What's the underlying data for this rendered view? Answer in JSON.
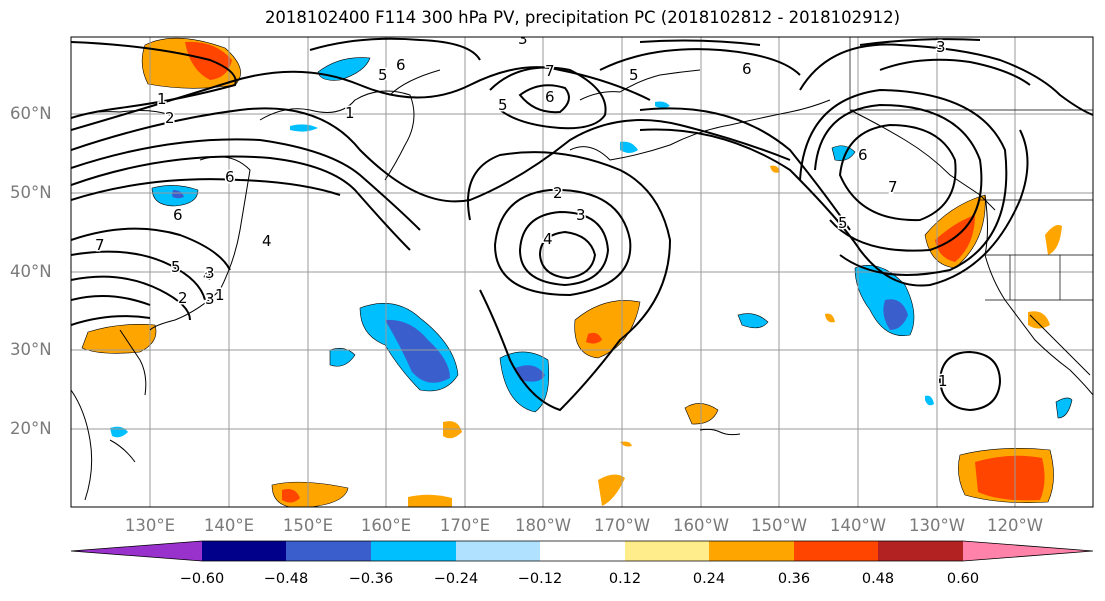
{
  "title": "2018102400 F114 300 hPa PV, precipitation PC (2018102812 - 2018102912)",
  "lat_labels": [
    "60°N",
    "50°N",
    "40°N",
    "30°N",
    "20°N"
  ],
  "lon_labels": [
    "130°E",
    "140°E",
    "150°E",
    "160°E",
    "170°E",
    "180°W",
    "170°W",
    "160°W",
    "150°W",
    "140°W",
    "130°W",
    "120°W"
  ],
  "colorbar": {
    "colors": [
      "#9932cc",
      "#00008b",
      "#3a5fcd",
      "#00bfff",
      "#b0e2ff",
      "#ffffff",
      "#ffec8b",
      "#ffa500",
      "#ff4500",
      "#b22222",
      "#ff82ab"
    ],
    "tick_labels": [
      "−0.60",
      "−0.48",
      "−0.36",
      "−0.24",
      "−0.12",
      "0.12",
      "0.24",
      "0.36",
      "0.48",
      "0.60"
    ]
  },
  "contour_labels": [
    "1",
    "2",
    "3",
    "4",
    "5",
    "6",
    "7",
    "1",
    "2",
    "3",
    "4",
    "5",
    "6",
    "7",
    "3",
    "6",
    "1",
    "5",
    "2",
    "3",
    "4",
    "6",
    "5",
    "6",
    "7",
    "5",
    "3",
    "6",
    "1"
  ]
}
